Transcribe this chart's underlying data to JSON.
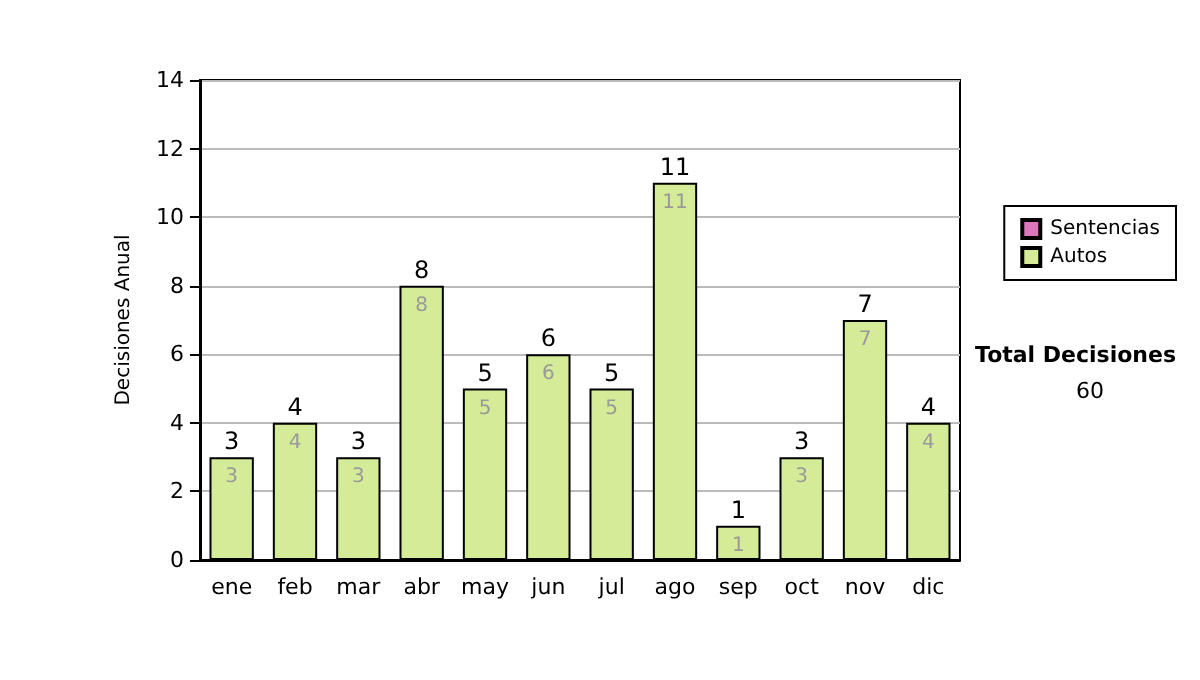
{
  "chart_data": {
    "type": "bar",
    "ylabel": "Decisiones Anual",
    "categories": [
      "ene",
      "feb",
      "mar",
      "abr",
      "may",
      "jun",
      "jul",
      "ago",
      "sep",
      "oct",
      "nov",
      "dic"
    ],
    "series": [
      {
        "name": "Sentencias",
        "color": "#dd77bb",
        "values": [
          null,
          null,
          null,
          null,
          null,
          null,
          null,
          null,
          null,
          null,
          null,
          null
        ]
      },
      {
        "name": "Autos",
        "color": "#d4ec98",
        "values": [
          3,
          4,
          3,
          8,
          5,
          6,
          5,
          11,
          1,
          3,
          7,
          4
        ]
      }
    ],
    "stacked": true,
    "data_labels": true,
    "totals": [
      "3",
      "4",
      "3",
      "8",
      "5",
      "6",
      "5",
      "11",
      "1",
      "3",
      "7",
      "4"
    ],
    "ylim": [
      0,
      14
    ],
    "yticks": [
      0,
      2,
      4,
      6,
      8,
      10,
      12,
      14
    ],
    "grid": "y",
    "legend": "right",
    "annotations": [
      "Total Decisiones",
      "60"
    ]
  }
}
